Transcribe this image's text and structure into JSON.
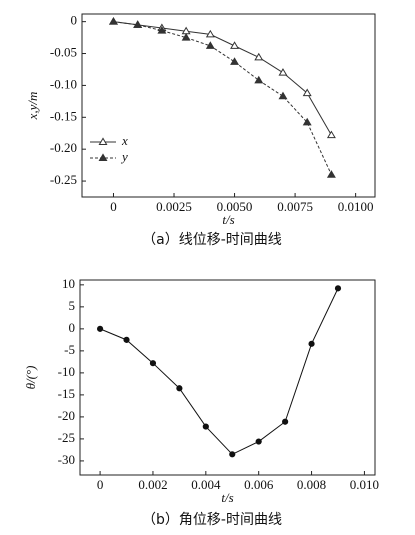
{
  "chart_data": [
    {
      "type": "line",
      "caption": "（a）线位移-时间曲线",
      "x_label": "t/s",
      "y_label": "x,y/m",
      "x": [
        0,
        0.001,
        0.002,
        0.003,
        0.004,
        0.005,
        0.006,
        0.007,
        0.008,
        0.009
      ],
      "series": [
        {
          "name": "x",
          "color": "#333333",
          "marker": "open-triangle",
          "dashed": false,
          "values": [
            0,
            -0.005,
            -0.01,
            -0.015,
            -0.02,
            -0.038,
            -0.056,
            -0.08,
            -0.112,
            -0.178
          ]
        },
        {
          "name": "y",
          "color": "#333333",
          "marker": "triangle",
          "dashed": true,
          "values": [
            0,
            -0.005,
            -0.014,
            -0.025,
            -0.038,
            -0.063,
            -0.092,
            -0.117,
            -0.158,
            -0.24
          ]
        }
      ],
      "xlim": [
        -0.0013,
        0.0108
      ],
      "xticks": [
        0,
        0.0025,
        {
          "value": 0.005,
          "label": "0.0050"
        },
        0.0075,
        {
          "value": 0.01,
          "label": "0.0100"
        }
      ],
      "ylim": [
        -0.275,
        0.012
      ],
      "yticks": [
        0,
        -0.05,
        {
          "value": -0.1,
          "label": "-0.10"
        },
        -0.15,
        {
          "value": -0.2,
          "label": "-0.20"
        },
        -0.25
      ],
      "legend": "lower-left"
    },
    {
      "type": "line",
      "caption": "（b）角位移-时间曲线",
      "x_label": "t/s",
      "y_label": "θ/(°)",
      "x": [
        0,
        0.001,
        0.002,
        0.003,
        0.004,
        0.005,
        0.006,
        0.007,
        0.008,
        0.009
      ],
      "values": [
        0,
        -2.5,
        -7.8,
        -13.5,
        -22.2,
        -28.5,
        -25.6,
        -21.1,
        -3.4,
        9.2
      ],
      "color": "#111111",
      "marker": "circle",
      "xlim": [
        -0.00076,
        0.0104
      ],
      "xticks": [
        0,
        0.002,
        0.004,
        0.006,
        0.008,
        {
          "value": 0.01,
          "label": "0.010"
        }
      ],
      "ylim": [
        -33.2,
        11.1
      ],
      "yticks": [
        10,
        5,
        0,
        -5,
        -10,
        -15,
        -20,
        -25,
        -30
      ]
    }
  ]
}
